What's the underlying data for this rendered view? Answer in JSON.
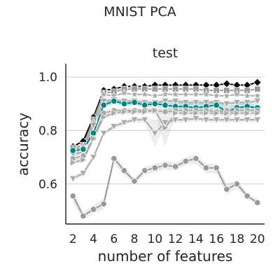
{
  "figure": {
    "suptitle": "MNIST PCA"
  },
  "chart_data": {
    "type": "line",
    "title": "test",
    "xlabel": "number of features",
    "ylabel": "accuracy",
    "xlim": [
      1.3,
      20.7
    ],
    "ylim": [
      0.45,
      1.05
    ],
    "xticks": [
      2,
      4,
      6,
      8,
      10,
      12,
      14,
      16,
      18,
      20
    ],
    "yticks": [
      0.6,
      0.8,
      1.0
    ],
    "ytick_labels": [
      "0.6",
      "0.8",
      "1.0"
    ],
    "grid": "horizontal",
    "x": [
      2,
      3,
      4,
      5,
      6,
      7,
      8,
      9,
      10,
      11,
      12,
      13,
      14,
      15,
      16,
      17,
      18,
      19,
      20
    ],
    "series": [
      {
        "color": "#000000",
        "marker": "diamond",
        "band": false,
        "values": [
          0.74,
          0.76,
          0.85,
          0.95,
          0.955,
          0.965,
          0.965,
          0.965,
          0.97,
          0.97,
          0.97,
          0.97,
          0.97,
          0.97,
          0.97,
          0.975,
          0.97,
          0.97,
          0.98
        ]
      },
      {
        "color": "#999999",
        "marker": "square",
        "band": false,
        "values": [
          0.735,
          0.745,
          0.84,
          0.94,
          0.945,
          0.955,
          0.955,
          0.955,
          0.955,
          0.955,
          0.955,
          0.955,
          0.955,
          0.95,
          0.95,
          0.95,
          0.95,
          0.95,
          0.955
        ]
      },
      {
        "color": "#aaaaaa",
        "marker": "star",
        "band": false,
        "values": [
          0.725,
          0.74,
          0.83,
          0.935,
          0.93,
          0.94,
          0.935,
          0.935,
          0.93,
          0.935,
          0.935,
          0.935,
          0.935,
          0.935,
          0.93,
          0.93,
          0.935,
          0.93,
          0.93
        ]
      },
      {
        "color": "#aaaaaa",
        "marker": "triangle-down",
        "band": true,
        "values": [
          0.71,
          0.72,
          0.82,
          0.91,
          0.915,
          0.91,
          0.91,
          0.905,
          0.905,
          0.91,
          0.91,
          0.905,
          0.905,
          0.905,
          0.905,
          0.9,
          0.905,
          0.905,
          0.91
        ],
        "lower": [
          0.7,
          0.71,
          0.81,
          0.9,
          0.905,
          0.9,
          0.9,
          0.895,
          0.895,
          0.9,
          0.9,
          0.895,
          0.895,
          0.895,
          0.895,
          0.89,
          0.895,
          0.895,
          0.9
        ],
        "upper": [
          0.72,
          0.73,
          0.83,
          0.92,
          0.925,
          0.92,
          0.92,
          0.915,
          0.915,
          0.92,
          0.92,
          0.915,
          0.915,
          0.915,
          0.915,
          0.91,
          0.915,
          0.915,
          0.92
        ]
      },
      {
        "color": "#008080",
        "marker": "circle",
        "band": true,
        "values": [
          0.725,
          0.73,
          0.79,
          0.895,
          0.91,
          0.9,
          0.905,
          0.895,
          0.9,
          0.895,
          0.89,
          0.89,
          0.885,
          0.89,
          0.895,
          0.87,
          0.885,
          0.89,
          0.885
        ],
        "lower": [
          0.715,
          0.72,
          0.78,
          0.885,
          0.9,
          0.89,
          0.895,
          0.885,
          0.89,
          0.88,
          0.875,
          0.875,
          0.87,
          0.875,
          0.87,
          0.85,
          0.87,
          0.875,
          0.875
        ],
        "upper": [
          0.735,
          0.74,
          0.8,
          0.905,
          0.92,
          0.91,
          0.915,
          0.905,
          0.91,
          0.905,
          0.905,
          0.905,
          0.9,
          0.905,
          0.915,
          0.89,
          0.9,
          0.905,
          0.895
        ]
      },
      {
        "color": "#aaaaaa",
        "marker": "circle",
        "band": true,
        "values": [
          0.695,
          0.705,
          0.77,
          0.865,
          0.875,
          0.875,
          0.875,
          0.875,
          0.875,
          0.87,
          0.875,
          0.875,
          0.875,
          0.875,
          0.87,
          0.875,
          0.875,
          0.875,
          0.875
        ],
        "lower": [
          0.685,
          0.695,
          0.76,
          0.855,
          0.865,
          0.865,
          0.865,
          0.865,
          0.865,
          0.86,
          0.865,
          0.865,
          0.865,
          0.865,
          0.86,
          0.865,
          0.865,
          0.865,
          0.865
        ],
        "upper": [
          0.705,
          0.715,
          0.78,
          0.875,
          0.885,
          0.885,
          0.885,
          0.885,
          0.885,
          0.88,
          0.885,
          0.885,
          0.885,
          0.885,
          0.88,
          0.885,
          0.885,
          0.885,
          0.885
        ]
      },
      {
        "color": "#aaaaaa",
        "marker": "triangle-right",
        "band": true,
        "values": [
          0.68,
          0.69,
          0.77,
          0.85,
          0.865,
          0.87,
          0.87,
          0.87,
          0.875,
          0.81,
          0.865,
          0.865,
          0.865,
          0.865,
          0.865,
          0.865,
          0.865,
          0.865,
          0.865
        ],
        "lower": [
          0.67,
          0.68,
          0.76,
          0.84,
          0.855,
          0.86,
          0.86,
          0.86,
          0.865,
          0.74,
          0.855,
          0.855,
          0.855,
          0.855,
          0.855,
          0.855,
          0.855,
          0.855,
          0.855
        ],
        "upper": [
          0.69,
          0.7,
          0.78,
          0.86,
          0.875,
          0.88,
          0.88,
          0.88,
          0.885,
          0.88,
          0.875,
          0.875,
          0.875,
          0.875,
          0.875,
          0.875,
          0.875,
          0.875,
          0.875
        ]
      },
      {
        "color": "#aaaaaa",
        "marker": "triangle-down",
        "band": true,
        "values": [
          0.62,
          0.64,
          0.7,
          0.79,
          0.815,
          0.83,
          0.84,
          0.84,
          0.79,
          0.83,
          0.84,
          0.84,
          0.845,
          0.84,
          0.84,
          0.84,
          0.84,
          0.84,
          0.84
        ],
        "lower": [
          0.61,
          0.63,
          0.69,
          0.78,
          0.805,
          0.82,
          0.83,
          0.83,
          0.74,
          0.82,
          0.83,
          0.83,
          0.835,
          0.83,
          0.83,
          0.83,
          0.83,
          0.83,
          0.83
        ],
        "upper": [
          0.63,
          0.65,
          0.71,
          0.8,
          0.825,
          0.84,
          0.85,
          0.85,
          0.84,
          0.84,
          0.85,
          0.85,
          0.855,
          0.85,
          0.85,
          0.85,
          0.85,
          0.85,
          0.85
        ]
      },
      {
        "color": "#999999",
        "marker": "circle",
        "band": true,
        "values": [
          0.555,
          0.48,
          0.505,
          0.525,
          0.695,
          0.65,
          0.61,
          0.65,
          0.66,
          0.67,
          0.665,
          0.685,
          0.695,
          0.66,
          0.66,
          0.58,
          0.6,
          0.555,
          0.53
        ],
        "lower": [
          0.53,
          0.465,
          0.49,
          0.505,
          0.68,
          0.635,
          0.6,
          0.635,
          0.645,
          0.655,
          0.65,
          0.67,
          0.675,
          0.64,
          0.64,
          0.56,
          0.585,
          0.545,
          0.52
        ],
        "upper": [
          0.58,
          0.495,
          0.52,
          0.545,
          0.71,
          0.665,
          0.62,
          0.665,
          0.675,
          0.685,
          0.68,
          0.7,
          0.71,
          0.675,
          0.675,
          0.6,
          0.615,
          0.565,
          0.54
        ]
      }
    ]
  }
}
